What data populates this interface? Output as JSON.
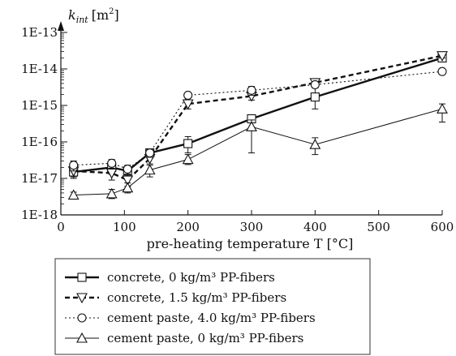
{
  "chart_data": {
    "type": "line",
    "ylabel_var": "k",
    "ylabel_sub": "int",
    "ylabel_unit": "[m",
    "ylabel_unit_sup": "2",
    "ylabel_unit_close": "]",
    "xlabel": "pre-heating temperature T [°C]",
    "y_scale": "log",
    "ylim": [
      1e-18,
      1e-13
    ],
    "xlim": [
      0,
      600
    ],
    "x_ticks": [
      0,
      100,
      200,
      300,
      400,
      500,
      600
    ],
    "x_tick_labels": [
      "0",
      "100",
      "200",
      "300",
      "400",
      "500",
      "600"
    ],
    "y_ticks": [
      1e-18,
      1e-17,
      1e-16,
      1e-15,
      1e-14,
      1e-13
    ],
    "y_tick_labels": [
      "1E-18",
      "1E-17",
      "1E-16",
      "1E-15",
      "1E-14",
      "1E-13"
    ],
    "grid": false,
    "legend_placement": "bottom",
    "series": [
      {
        "name": "concrete, 0 kg/m³ PP-fibers",
        "marker": "square",
        "line": "solid-thick",
        "x": [
          20,
          80,
          105,
          140,
          200,
          300,
          400,
          600
        ],
        "y": [
          1.5e-17,
          2e-17,
          1.6e-17,
          5e-17,
          9e-17,
          4.3e-16,
          1.7e-15,
          2e-14
        ],
        "err_low": [
          1e-17,
          1.3e-17,
          1.1e-17,
          3.5e-17,
          5e-17,
          3.5e-16,
          8e-16,
          1.6e-14
        ],
        "err_high": [
          2.5e-17,
          3e-17,
          2e-17,
          6e-17,
          1.4e-16,
          5e-16,
          3.2e-15,
          2.5e-14
        ]
      },
      {
        "name": "concrete, 1.5 kg/m³ PP-fibers",
        "marker": "triangle-down",
        "line": "dashed-thick",
        "x": [
          20,
          80,
          105,
          140,
          200,
          300,
          400,
          600
        ],
        "y": [
          1.6e-17,
          1.4e-17,
          9e-18,
          3.5e-17,
          1.1e-15,
          1.8e-15,
          4.2e-15,
          2.3e-14
        ],
        "err_low": [
          1.1e-17,
          9e-18,
          6e-18,
          2.5e-17,
          8e-16,
          1.4e-15,
          3.5e-15,
          2e-14
        ],
        "err_high": [
          2.2e-17,
          1.9e-17,
          1.3e-17,
          4.5e-17,
          1.4e-15,
          2.2e-15,
          5e-15,
          2.7e-14
        ]
      },
      {
        "name": "cement paste, 4.0 kg/m³ PP-fibers",
        "marker": "circle",
        "line": "dotted",
        "x": [
          20,
          80,
          105,
          140,
          200,
          300,
          400,
          600
        ],
        "y": [
          2.3e-17,
          2.6e-17,
          1.8e-17,
          5e-17,
          1.9e-15,
          2.6e-15,
          3.7e-15,
          8.5e-15
        ],
        "err_low": [
          1.6e-17,
          1.9e-17,
          1.3e-17,
          3.8e-17,
          1.6e-15,
          1.9e-15,
          3e-15,
          7.5e-15
        ],
        "err_high": [
          3e-17,
          3.3e-17,
          2.3e-17,
          6.2e-17,
          2.2e-15,
          3.3e-15,
          4.4e-15,
          9.5e-15
        ]
      },
      {
        "name": "cement paste, 0 kg/m³ PP-fibers",
        "marker": "triangle-up",
        "line": "solid-thin",
        "x": [
          20,
          80,
          105,
          140,
          200,
          300,
          400,
          600
        ],
        "y": [
          3.5e-18,
          3.8e-18,
          5.5e-18,
          1.7e-17,
          3.3e-17,
          2.6e-16,
          8.5e-17,
          8e-16
        ],
        "err_low": [
          2.8e-18,
          2.8e-18,
          4e-18,
          1.1e-17,
          2.4e-17,
          5e-17,
          4.5e-17,
          3.5e-16
        ],
        "err_high": [
          4.2e-18,
          5e-18,
          7.5e-18,
          2.3e-17,
          4.5e-17,
          4e-16,
          1.3e-16,
          1.1e-15
        ]
      }
    ]
  }
}
